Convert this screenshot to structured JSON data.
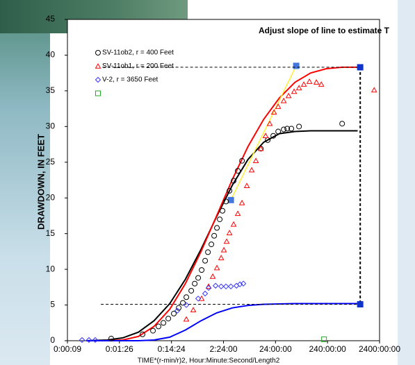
{
  "chart_data": {
    "type": "scatter",
    "annotation": "Adjust slope of line to estimate T",
    "y_label": "DRAWDOWN, IN FEET",
    "x_label": "TIME*(r-min/r)2, Hour:Minute:Second/Length2",
    "log_x": true,
    "grid": false,
    "xlim": [
      8.64,
      8640000
    ],
    "xticks": [
      {
        "value": 8.64,
        "label": "0:00:09"
      },
      {
        "value": 86.4,
        "label": "0:01:26"
      },
      {
        "value": 864,
        "label": "0:14:24"
      },
      {
        "value": 8640,
        "label": "2:24:00"
      },
      {
        "value": 86400,
        "label": "24:00:00"
      },
      {
        "value": 864000,
        "label": "240:00:00"
      },
      {
        "value": 8640000,
        "label": "2400:00:00"
      }
    ],
    "ylim": [
      0,
      45
    ],
    "yticks": [
      0,
      5,
      10,
      15,
      20,
      25,
      30,
      35,
      40,
      45
    ],
    "series": [
      {
        "name": "SV-11ob2, r = 400 Feet",
        "color": "#000000",
        "marker": "circle",
        "x": [
          60,
          240,
          381,
          487,
          605,
          751,
          958,
          1190,
          1431,
          1669,
          2073,
          2418,
          2818,
          3285,
          3833,
          4340,
          5053,
          5721,
          6465,
          7320,
          8270,
          9650,
          11260,
          13540,
          16280,
          19610,
          45030,
          61160,
          78250,
          97170,
          124300,
          145050,
          174390,
          244630,
          1650100
        ],
        "values": [
          0.3,
          0.9,
          1.4,
          2.0,
          2.5,
          3.1,
          3.8,
          4.6,
          5.3,
          6.1,
          7.0,
          8.0,
          8.8,
          9.9,
          11.2,
          12.4,
          13.5,
          14.7,
          15.8,
          17.0,
          18.2,
          19.5,
          21.0,
          22.4,
          23.8,
          25.2,
          26.9,
          28.1,
          28.7,
          29.3,
          29.6,
          29.7,
          29.7,
          30.0,
          30.4
        ]
      },
      {
        "name": "SV-11ob1, r = 200 Feet",
        "color": "#ff0000",
        "marker": "triangle",
        "x": [
          1669,
          2272,
          3285,
          4472,
          5377,
          6465,
          7790,
          8800,
          9945,
          11260,
          13540,
          16280,
          19610,
          24300,
          30160,
          36270,
          45030,
          55790,
          67060,
          80820,
          97170,
          124300,
          154000,
          197000,
          244630,
          303000,
          387700,
          527900,
          655400,
          6800000
        ],
        "values": [
          3.0,
          4.3,
          5.9,
          7.6,
          9.0,
          10.2,
          11.6,
          12.7,
          13.9,
          15.1,
          16.3,
          17.8,
          19.3,
          21.7,
          23.9,
          25.2,
          26.9,
          28.7,
          30.4,
          32.0,
          32.8,
          33.6,
          34.3,
          34.9,
          35.4,
          35.9,
          36.3,
          36.2,
          35.9,
          35.1
        ]
      },
      {
        "name": "V-2, r = 3650 Feet",
        "color": "#3333ff",
        "marker": "diamond",
        "x": [
          16.5,
          22.4,
          29.6,
          1119,
          1669,
          2818,
          3833,
          4472,
          6086,
          7790,
          9650,
          11977,
          15330,
          17880,
          20830
        ],
        "values": [
          0.1,
          0.1,
          0.1,
          4.2,
          5.0,
          5.9,
          6.6,
          7.4,
          7.7,
          7.6,
          7.6,
          7.6,
          7.7,
          7.9,
          8.0
        ]
      },
      {
        "color": "#22aa22",
        "marker": "square",
        "x": [
          740500
        ],
        "values": [
          0.2
        ]
      }
    ],
    "lines": [
      {
        "color": "#000000",
        "width": 2,
        "x": [
          20,
          50,
          100,
          200,
          400,
          800,
          1600,
          3200,
          6400,
          12800,
          25600,
          51200,
          102400,
          204800,
          409600,
          819200,
          1638400,
          3276800
        ],
        "values": [
          0,
          0.1,
          0.4,
          1.2,
          2.8,
          5.2,
          8.6,
          12.8,
          17.4,
          21.8,
          25.4,
          27.8,
          29.0,
          29.3,
          29.4,
          29.4,
          29.4,
          29.4
        ]
      },
      {
        "color": "#ff0000",
        "width": 2,
        "x": [
          20,
          50,
          100,
          200,
          400,
          800,
          1600,
          3200,
          6400,
          12800,
          25600,
          51200,
          102400,
          204800,
          409600,
          819200,
          1638400,
          3276800
        ],
        "values": [
          0,
          0,
          0.1,
          0.6,
          2.0,
          4.4,
          8.0,
          12.5,
          17.5,
          22.6,
          27.2,
          31.0,
          34.0,
          36.2,
          37.5,
          38.1,
          38.3,
          38.3
        ]
      },
      {
        "color": "#0000ff",
        "width": 2,
        "x": [
          20,
          50,
          100,
          200,
          400,
          800,
          1600,
          3200,
          6400,
          12800,
          25600,
          51200,
          102400,
          204800,
          409600,
          819200,
          1638400,
          3276800
        ],
        "values": [
          0,
          0,
          0,
          0,
          0.1,
          0.5,
          1.5,
          2.8,
          3.9,
          4.6,
          4.95,
          5.1,
          5.15,
          5.2,
          5.2,
          5.2,
          5.2,
          5.2
        ]
      },
      {
        "color": "#ffee33",
        "width": 1.5,
        "marker": "square",
        "marker_color": "#4477dd",
        "x": [
          11977,
          216035
        ],
        "values": [
          19.7,
          38.5
        ]
      },
      {
        "color": "#000000",
        "width": 1,
        "dash": true,
        "x": [
          41,
          3668000
        ],
        "values": [
          38.3,
          38.3
        ]
      },
      {
        "color": "#000000",
        "width": 1,
        "dash": true,
        "x": [
          37.9,
          3668000
        ],
        "values": [
          5.1,
          5.1
        ]
      },
      {
        "color": "#000000",
        "width": 2,
        "dash": true,
        "marker": "square",
        "marker_color": "#1133cc",
        "x": [
          3668000,
          3668000
        ],
        "values": [
          38.3,
          5.1
        ]
      }
    ]
  }
}
